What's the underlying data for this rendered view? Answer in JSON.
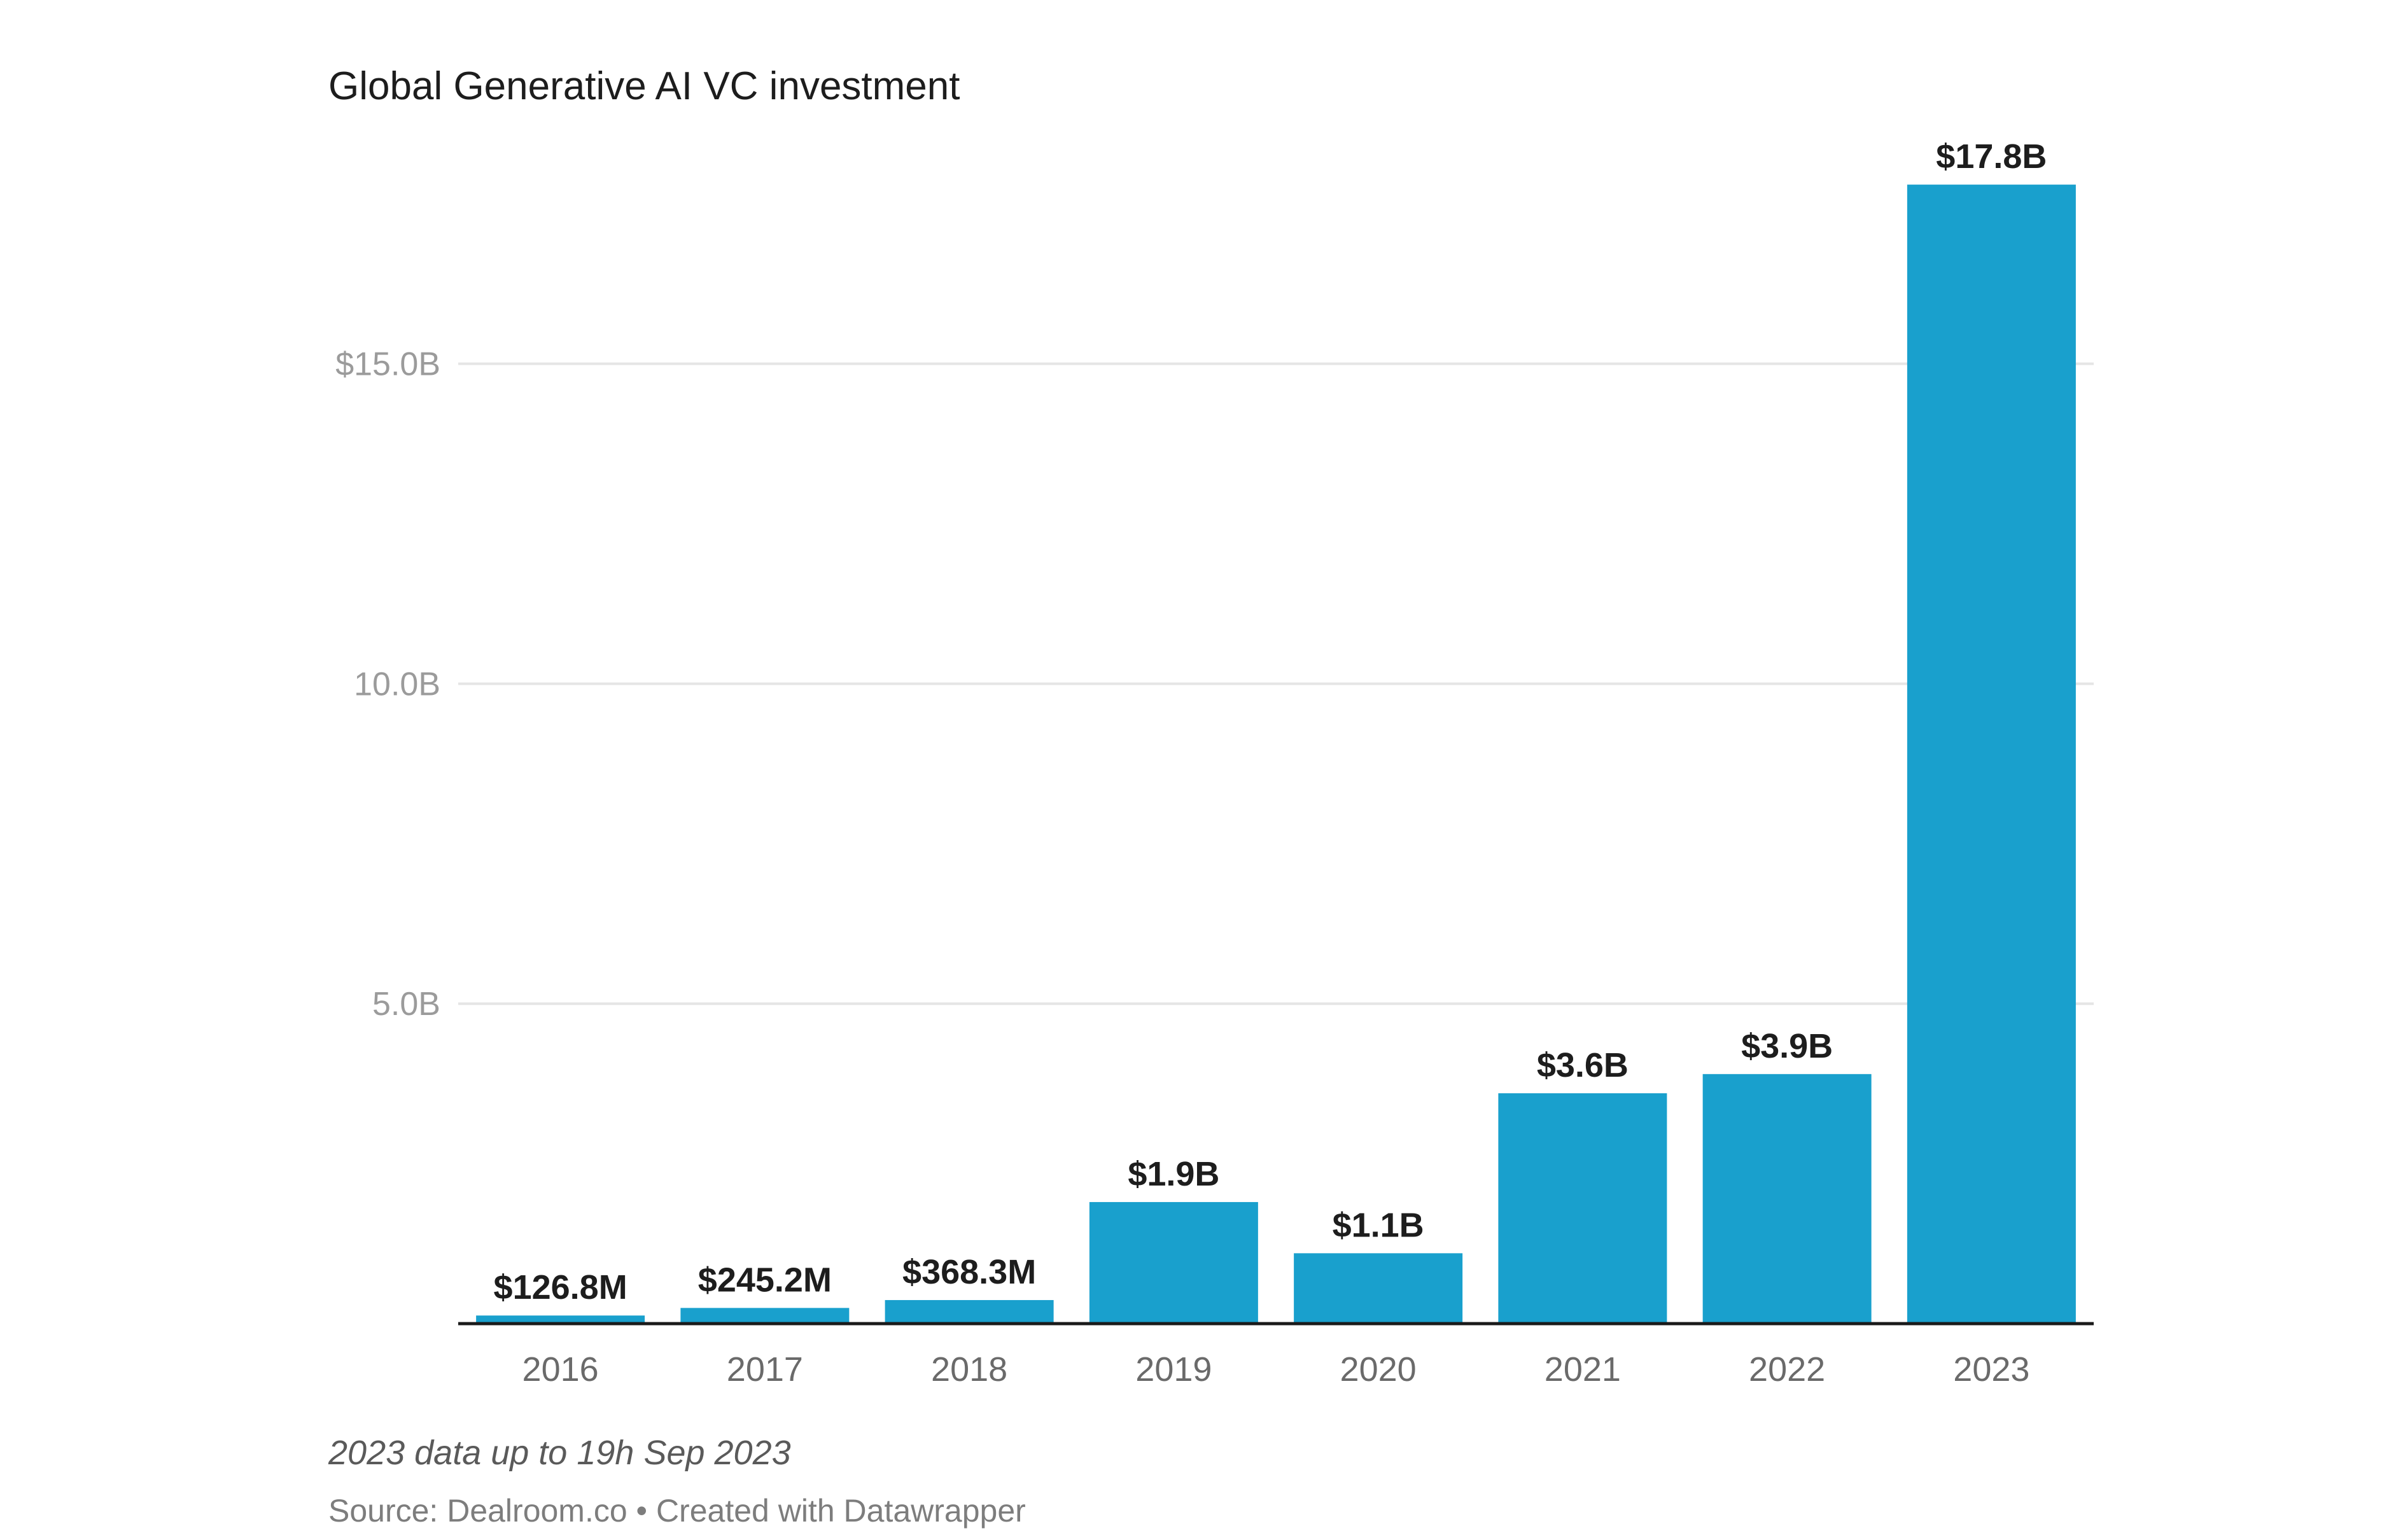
{
  "chart_data": {
    "type": "bar",
    "title": "Global Generative AI VC investment",
    "note": "2023 data up to 19h Sep 2023",
    "source": "Source: Dealroom.co • Created with Datawrapper",
    "categories": [
      "2016",
      "2017",
      "2018",
      "2019",
      "2020",
      "2021",
      "2022",
      "2023"
    ],
    "values": [
      0.1268,
      0.2452,
      0.3683,
      1.9,
      1.1,
      3.6,
      3.9,
      17.8
    ],
    "value_unit": "billion USD",
    "value_labels": [
      "$126.8M",
      "$245.2M",
      "$368.3M",
      "$1.9B",
      "$1.1B",
      "$3.6B",
      "$3.9B",
      "$17.8B"
    ],
    "y_ticks": [
      {
        "value": 5,
        "label": "5.0B"
      },
      {
        "value": 10,
        "label": "10.0B"
      },
      {
        "value": 15,
        "label": "$15.0B"
      }
    ],
    "ylim": [
      0,
      18
    ],
    "grid": true,
    "legend": "none",
    "bar_color": "#19a0cd",
    "gridline_color": "#e5e5e5",
    "baseline_color": "#1a1a1a"
  }
}
